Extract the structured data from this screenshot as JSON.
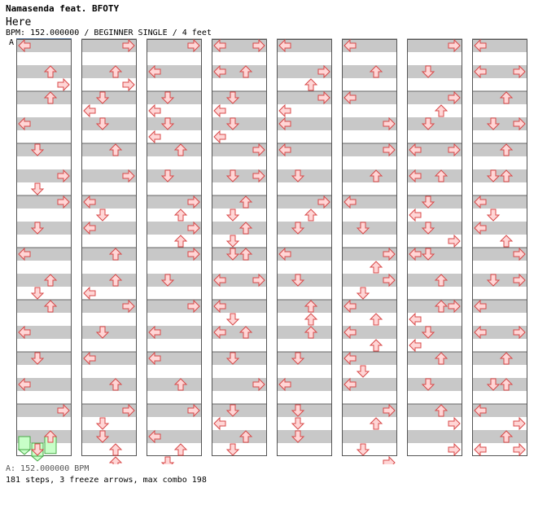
{
  "header": {
    "title": "Namasenda feat. BFOTY",
    "subtitle": "Here",
    "info": "BPM: 152.000000 / BEGINNER SINGLE / 4 feet",
    "marker": "A"
  },
  "footer": {
    "bpm_line": "A: 152.000000 BPM",
    "stats_line": "181 steps, 3 freeze arrows, max combo 198"
  },
  "chart": {
    "lane_order": [
      "left",
      "down",
      "up",
      "right"
    ],
    "arrow_fill": "#ffd6d6",
    "arrow_stroke": "#d84848",
    "freeze_fill": "#c8ffc8",
    "freeze_stroke": "#48a848",
    "columns": [
      {
        "arrows": [
          [
            0,
            0
          ],
          [
            2,
            2
          ],
          [
            3,
            3
          ],
          [
            4,
            2
          ],
          [
            6,
            0
          ],
          [
            8,
            1
          ],
          [
            10,
            3
          ],
          [
            11,
            1
          ],
          [
            12,
            3
          ],
          [
            14,
            1
          ],
          [
            16,
            0
          ],
          [
            18,
            2
          ],
          [
            19,
            1
          ],
          [
            20,
            2
          ],
          [
            22,
            0
          ],
          [
            24,
            1
          ],
          [
            26,
            0
          ],
          [
            28,
            3
          ],
          [
            30,
            2
          ],
          [
            31,
            1
          ]
        ],
        "freezes": [
          [
            30.5,
            0,
            31.5
          ],
          [
            31,
            1,
            32
          ]
        ],
        "freezes_up": [
          [
            30,
            2,
            30.8
          ]
        ]
      },
      {
        "arrows": [
          [
            0,
            3
          ],
          [
            2,
            2
          ],
          [
            3,
            3
          ],
          [
            4,
            1
          ],
          [
            5,
            0
          ],
          [
            6,
            1
          ],
          [
            8,
            2
          ],
          [
            10,
            3
          ],
          [
            12,
            0
          ],
          [
            13,
            1
          ],
          [
            14,
            0
          ],
          [
            16,
            2
          ],
          [
            18,
            2
          ],
          [
            19,
            0
          ],
          [
            20,
            3
          ],
          [
            22,
            1
          ],
          [
            24,
            0
          ],
          [
            26,
            2
          ],
          [
            28,
            3
          ],
          [
            29,
            1
          ],
          [
            30,
            1
          ],
          [
            31,
            2
          ],
          [
            32,
            2
          ]
        ],
        "freezes": []
      },
      {
        "arrows": [
          [
            0,
            3
          ],
          [
            2,
            0
          ],
          [
            4,
            1
          ],
          [
            5,
            0
          ],
          [
            6,
            1
          ],
          [
            7,
            0
          ],
          [
            8,
            2
          ],
          [
            10,
            1
          ],
          [
            12,
            3
          ],
          [
            13,
            2
          ],
          [
            14,
            3
          ],
          [
            15,
            2
          ],
          [
            16,
            3
          ],
          [
            18,
            1
          ],
          [
            20,
            3
          ],
          [
            22,
            0
          ],
          [
            24,
            0
          ],
          [
            26,
            2
          ],
          [
            28,
            3
          ],
          [
            30,
            0
          ],
          [
            31,
            2
          ],
          [
            32,
            1
          ]
        ],
        "freezes": []
      },
      {
        "arrows": [
          [
            0,
            0
          ],
          [
            0,
            3
          ],
          [
            2,
            0
          ],
          [
            2,
            2
          ],
          [
            4,
            1
          ],
          [
            5,
            0
          ],
          [
            6,
            1
          ],
          [
            7,
            0
          ],
          [
            8,
            3
          ],
          [
            10,
            1
          ],
          [
            10,
            3
          ],
          [
            12,
            2
          ],
          [
            13,
            1
          ],
          [
            14,
            2
          ],
          [
            15,
            1
          ],
          [
            16,
            1
          ],
          [
            16,
            2
          ],
          [
            18,
            0
          ],
          [
            18,
            3
          ],
          [
            20,
            0
          ],
          [
            21,
            1
          ],
          [
            22,
            0
          ],
          [
            22,
            2
          ],
          [
            24,
            1
          ],
          [
            26,
            3
          ],
          [
            28,
            1
          ],
          [
            29,
            0
          ],
          [
            30,
            2
          ],
          [
            31,
            1
          ]
        ],
        "freezes": []
      },
      {
        "arrows": [
          [
            0,
            0
          ],
          [
            2,
            3
          ],
          [
            3,
            2
          ],
          [
            4,
            3
          ],
          [
            5,
            0
          ],
          [
            6,
            0
          ],
          [
            8,
            0
          ],
          [
            10,
            1
          ],
          [
            12,
            3
          ],
          [
            13,
            2
          ],
          [
            14,
            1
          ],
          [
            16,
            0
          ],
          [
            18,
            1
          ],
          [
            20,
            2
          ],
          [
            21,
            2
          ],
          [
            22,
            2
          ],
          [
            24,
            1
          ],
          [
            26,
            0
          ],
          [
            28,
            1
          ],
          [
            29,
            1
          ],
          [
            30,
            1
          ]
        ],
        "freezes": []
      },
      {
        "arrows": [
          [
            0,
            0
          ],
          [
            2,
            2
          ],
          [
            4,
            0
          ],
          [
            6,
            3
          ],
          [
            8,
            3
          ],
          [
            10,
            2
          ],
          [
            12,
            0
          ],
          [
            14,
            1
          ],
          [
            16,
            3
          ],
          [
            17,
            2
          ],
          [
            18,
            3
          ],
          [
            19,
            1
          ],
          [
            20,
            0
          ],
          [
            21,
            2
          ],
          [
            22,
            0
          ],
          [
            23,
            2
          ],
          [
            24,
            0
          ],
          [
            25,
            1
          ],
          [
            26,
            0
          ],
          [
            28,
            3
          ],
          [
            29,
            2
          ],
          [
            31,
            1
          ],
          [
            32,
            3
          ]
        ],
        "freezes": []
      },
      {
        "arrows": [
          [
            0,
            3
          ],
          [
            2,
            1
          ],
          [
            4,
            3
          ],
          [
            5,
            2
          ],
          [
            6,
            1
          ],
          [
            8,
            0
          ],
          [
            8,
            3
          ],
          [
            10,
            0
          ],
          [
            10,
            2
          ],
          [
            12,
            1
          ],
          [
            13,
            0
          ],
          [
            14,
            1
          ],
          [
            15,
            3
          ],
          [
            16,
            0
          ],
          [
            16,
            1
          ],
          [
            18,
            2
          ],
          [
            20,
            2
          ],
          [
            20,
            3
          ],
          [
            21,
            0
          ],
          [
            22,
            1
          ],
          [
            23,
            0
          ],
          [
            24,
            2
          ],
          [
            26,
            1
          ],
          [
            28,
            2
          ],
          [
            29,
            3
          ],
          [
            31,
            3
          ]
        ],
        "freezes": []
      },
      {
        "arrows": [
          [
            0,
            0
          ],
          [
            2,
            0
          ],
          [
            2,
            3
          ],
          [
            4,
            2
          ],
          [
            6,
            1
          ],
          [
            6,
            3
          ],
          [
            8,
            2
          ],
          [
            10,
            1
          ],
          [
            10,
            2
          ],
          [
            12,
            0
          ],
          [
            13,
            1
          ],
          [
            14,
            0
          ],
          [
            15,
            2
          ],
          [
            16,
            3
          ],
          [
            18,
            1
          ],
          [
            18,
            3
          ],
          [
            20,
            0
          ],
          [
            22,
            0
          ],
          [
            22,
            3
          ],
          [
            24,
            2
          ],
          [
            26,
            1
          ],
          [
            26,
            2
          ],
          [
            28,
            0
          ],
          [
            29,
            3
          ],
          [
            30,
            2
          ],
          [
            31,
            0
          ],
          [
            31,
            3
          ]
        ],
        "freezes": []
      }
    ]
  }
}
